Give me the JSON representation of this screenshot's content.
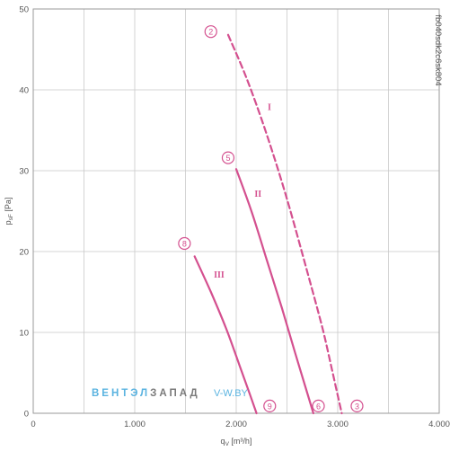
{
  "chart_data": {
    "type": "line",
    "xlabel": "q",
    "xlabel_sub": "V",
    "xlabel_unit": "[m³/h]",
    "ylabel": "p",
    "ylabel_sub": "sF",
    "ylabel_unit": "[Pa]",
    "xlim": [
      0,
      4000
    ],
    "ylim": [
      0,
      50
    ],
    "x_ticks": [
      0,
      1000,
      2000,
      3000,
      4000
    ],
    "x_tick_labels": [
      "0",
      "1.000",
      "2.000",
      "3.000",
      "4.000"
    ],
    "y_ticks": [
      0,
      10,
      20,
      30,
      40,
      50
    ],
    "y_tick_labels": [
      "0",
      "10",
      "20",
      "30",
      "40",
      "50"
    ],
    "grid": true,
    "series": [
      {
        "name": "I",
        "style": "dashed",
        "points": [
          [
            1920,
            46.8
          ],
          [
            2100,
            41.5
          ],
          [
            2300,
            34.5
          ],
          [
            2500,
            26.5
          ],
          [
            2700,
            17.5
          ],
          [
            2850,
            10.5
          ],
          [
            2950,
            5
          ],
          [
            3040,
            0
          ]
        ],
        "label_at": [
          2310,
          37.5
        ],
        "start_marker": "2",
        "start_marker_at": [
          1750,
          47.2
        ],
        "end_marker": "3",
        "end_marker_at": [
          3190,
          0.9
        ]
      },
      {
        "name": "II",
        "style": "solid",
        "points": [
          [
            2000,
            30.2
          ],
          [
            2150,
            25
          ],
          [
            2300,
            19
          ],
          [
            2450,
            13
          ],
          [
            2580,
            7.5
          ],
          [
            2700,
            2.5
          ],
          [
            2760,
            0
          ]
        ],
        "label_at": [
          2180,
          26.8
        ],
        "start_marker": "5",
        "start_marker_at": [
          1920,
          31.6
        ],
        "end_marker": "6",
        "end_marker_at": [
          2810,
          0.9
        ]
      },
      {
        "name": "III",
        "style": "solid",
        "points": [
          [
            1590,
            19.4
          ],
          [
            1750,
            15
          ],
          [
            1900,
            10.5
          ],
          [
            2030,
            6
          ],
          [
            2130,
            2.5
          ],
          [
            2200,
            0
          ]
        ],
        "label_at": [
          1780,
          16.8
        ],
        "start_marker": "8",
        "start_marker_at": [
          1490,
          21
        ],
        "end_marker": "9",
        "end_marker_at": [
          2330,
          0.9
        ]
      }
    ],
    "line_color": "#d4508f"
  },
  "side_code": "fb040sdk2c6sk804",
  "watermark": {
    "part1": "ВЕНТЭЛ",
    "part2": "ЗАПАД",
    "url": "V-W.BY",
    "color_blue": "#5ab3e0",
    "color_gray": "#7a7a7a"
  }
}
